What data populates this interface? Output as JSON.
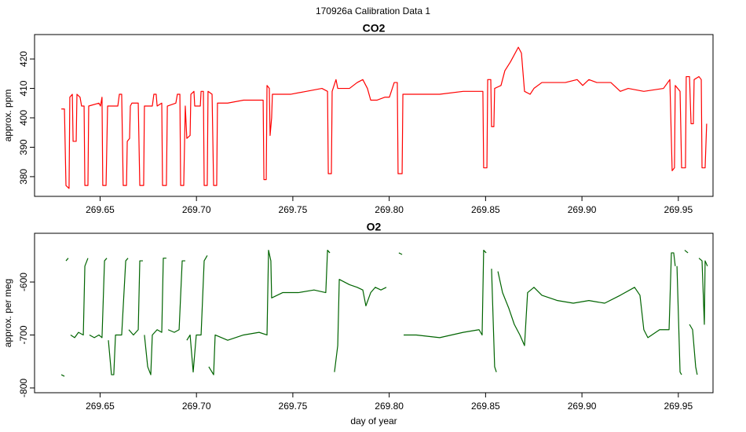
{
  "title": "170926a   Calibration Data 1",
  "chart_data": [
    {
      "type": "line",
      "title": "CO2",
      "y_label": "approx. ppm",
      "color": "#ff0000",
      "xlim": [
        269.616,
        269.968
      ],
      "ylim": [
        373.3,
        428.3
      ],
      "xticks": [
        269.65,
        {
          "value": 269.7,
          "label": "269.70"
        },
        269.75,
        {
          "value": 269.8,
          "label": "269.80"
        },
        269.85,
        {
          "value": 269.9,
          "label": "269.90"
        },
        269.95
      ],
      "yticks": [
        380,
        390,
        400,
        410,
        420
      ],
      "x": [
        269.6299,
        269.6315,
        269.6323,
        269.6339,
        269.6343,
        269.6356,
        269.636,
        269.6376,
        269.638,
        269.6396,
        269.6404,
        269.6417,
        269.6421,
        269.6437,
        269.6441,
        269.6494,
        269.6502,
        269.651,
        269.6514,
        269.6531,
        269.6539,
        269.6592,
        269.66,
        269.6612,
        269.662,
        269.6637,
        269.6641,
        269.6653,
        269.6657,
        269.6665,
        269.6698,
        269.6706,
        269.6726,
        269.673,
        269.6771,
        269.6779,
        269.6791,
        269.6796,
        269.682,
        269.6824,
        269.6844,
        269.6849,
        269.6893,
        269.6901,
        269.6914,
        269.6918,
        269.6934,
        269.6942,
        269.695,
        269.6967,
        269.6971,
        269.6987,
        269.6991,
        269.702,
        269.7024,
        269.7036,
        269.704,
        269.7056,
        269.706,
        269.7081,
        269.7089,
        269.7105,
        269.7109,
        269.7162,
        269.7244,
        269.7346,
        269.735,
        269.7362,
        269.7366,
        269.7378,
        269.7382,
        269.739,
        269.7394,
        269.7488,
        269.757,
        269.7651,
        269.768,
        269.7684,
        269.77,
        269.7704,
        269.7724,
        269.7733,
        269.7794,
        269.7834,
        269.7863,
        269.7887,
        269.7904,
        269.7936,
        269.7977,
        269.8001,
        269.8026,
        269.8042,
        269.8046,
        269.8067,
        269.8071,
        269.814,
        269.8262,
        269.8384,
        269.8486,
        269.849,
        269.8507,
        269.8511,
        269.8527,
        269.8531,
        269.8543,
        269.8547,
        269.858,
        269.86,
        269.8629,
        269.867,
        269.8686,
        269.8702,
        269.8731,
        269.8751,
        269.8792,
        269.8833,
        269.8914,
        269.8975,
        269.9004,
        269.9036,
        269.9077,
        269.915,
        269.9199,
        269.924,
        269.9321,
        269.9423,
        269.9456,
        269.9468,
        269.948,
        269.9484,
        269.9509,
        269.9517,
        269.9537,
        269.9541,
        269.9558,
        269.9566,
        269.9578,
        269.9582,
        269.9607,
        269.9619,
        269.9623,
        269.9639,
        269.9647
      ],
      "values": [
        403,
        403,
        377,
        376,
        407,
        408,
        392,
        392,
        408,
        407,
        404,
        404,
        377,
        377,
        404,
        405,
        404,
        407,
        377,
        377,
        404,
        404,
        408,
        408,
        377,
        377,
        392,
        393,
        404,
        405,
        405,
        377,
        377,
        404,
        404,
        408,
        408,
        404,
        405,
        377,
        377,
        404,
        405,
        408,
        408,
        377,
        377,
        404,
        393,
        394,
        408,
        409,
        404,
        404,
        409,
        409,
        377,
        377,
        409,
        408,
        377,
        377,
        405,
        405,
        406,
        406,
        379,
        379,
        411,
        410,
        394,
        400,
        408,
        408,
        409,
        410,
        409,
        381,
        381,
        409,
        413,
        410,
        410,
        412,
        413,
        410,
        406,
        406,
        407,
        407,
        412,
        412,
        381,
        381,
        408,
        408,
        408,
        409,
        409,
        383,
        383,
        413,
        413,
        397,
        397,
        410,
        411,
        416,
        419,
        424,
        422,
        409,
        408,
        410,
        412,
        412,
        412,
        413,
        411,
        413,
        412,
        412,
        409,
        410,
        409,
        410,
        413,
        382,
        383,
        411,
        409,
        383,
        383,
        414,
        414,
        398,
        398,
        413,
        414,
        413,
        383,
        383,
        398
      ]
    },
    {
      "type": "line",
      "title": "O2",
      "y_label": "approx. per meg",
      "x_label": "day of year",
      "color": "#006400",
      "xlim": [
        269.616,
        269.968
      ],
      "ylim": [
        -809,
        -508
      ],
      "xticks": [
        269.65,
        {
          "value": 269.7,
          "label": "269.70"
        },
        269.75,
        {
          "value": 269.8,
          "label": "269.80"
        },
        269.85,
        {
          "value": 269.9,
          "label": "269.90"
        },
        269.95
      ],
      "yticks": [
        -800,
        -700,
        -600
      ],
      "x": [
        269.6299,
        269.6315,
        null,
        269.6323,
        269.6335,
        null,
        269.6347,
        269.6368,
        269.6388,
        269.6413,
        269.6421,
        269.6437,
        null,
        269.6445,
        269.647,
        269.6494,
        269.651,
        269.6523,
        269.6535,
        null,
        269.6543,
        269.6559,
        269.6571,
        269.658,
        269.6612,
        269.6633,
        269.6645,
        null,
        269.6649,
        269.6673,
        269.6698,
        269.6706,
        269.6722,
        null,
        269.673,
        269.6747,
        269.6763,
        269.6771,
        269.6796,
        269.682,
        269.6828,
        269.6844,
        null,
        269.6853,
        269.6885,
        269.691,
        269.6926,
        269.6942,
        null,
        269.695,
        269.6967,
        269.6983,
        269.6999,
        269.7024,
        269.704,
        269.7056,
        null,
        269.7064,
        269.7089,
        269.7097,
        269.7162,
        269.7244,
        269.7325,
        269.7366,
        269.7374,
        269.7386,
        269.739,
        269.7447,
        269.7529,
        269.761,
        269.7671,
        269.768,
        269.7692,
        null,
        269.7716,
        269.7733,
        269.7741,
        269.7794,
        269.7834,
        269.7863,
        269.7879,
        269.7904,
        269.7928,
        269.7957,
        269.7985,
        null,
        269.805,
        269.8067,
        null,
        269.8075,
        269.814,
        269.8262,
        269.8384,
        269.8466,
        269.8482,
        269.849,
        269.8503,
        null,
        269.8531,
        269.8547,
        269.8556,
        null,
        269.8564,
        269.8588,
        269.8621,
        269.8649,
        269.8678,
        269.8702,
        269.8718,
        269.8751,
        269.8792,
        269.8873,
        269.8955,
        269.9036,
        269.9118,
        269.9199,
        269.9273,
        269.9301,
        269.9321,
        269.9342,
        269.9403,
        269.9452,
        269.9464,
        269.9476,
        269.9484,
        null,
        269.9493,
        269.9509,
        269.9517,
        null,
        269.9533,
        269.955,
        null,
        269.9558,
        269.9574,
        269.959,
        269.9598,
        null,
        269.9607,
        269.9623,
        269.9635,
        269.9639,
        269.9651
      ],
      "values": [
        -775,
        -778,
        null,
        -560,
        -555,
        null,
        -700,
        -705,
        -695,
        -700,
        -570,
        -555,
        null,
        -700,
        -705,
        -700,
        -705,
        -560,
        -555,
        null,
        -710,
        -775,
        -775,
        -700,
        -700,
        -560,
        -555,
        null,
        -690,
        -700,
        -690,
        -560,
        -560,
        null,
        -700,
        -760,
        -775,
        -700,
        -690,
        -695,
        -555,
        -555,
        null,
        -690,
        -695,
        -690,
        -560,
        -560,
        null,
        -710,
        -700,
        -770,
        -700,
        -700,
        -560,
        -550,
        null,
        -760,
        -775,
        -700,
        -710,
        -700,
        -695,
        -700,
        -540,
        -560,
        -630,
        -620,
        -620,
        -615,
        -620,
        -540,
        -545,
        null,
        -770,
        -720,
        -595,
        -605,
        -610,
        -615,
        -645,
        -620,
        -610,
        -615,
        -610,
        null,
        -545,
        -548,
        null,
        -700,
        -700,
        -705,
        -695,
        -690,
        -700,
        -540,
        -545,
        null,
        -575,
        -760,
        -770,
        null,
        -580,
        -620,
        -650,
        -680,
        -700,
        -720,
        -620,
        -610,
        -625,
        -635,
        -640,
        -635,
        -640,
        -625,
        -610,
        -625,
        -690,
        -705,
        -690,
        -690,
        -545,
        -545,
        -570,
        null,
        -570,
        -770,
        -775,
        null,
        -540,
        -545,
        null,
        -680,
        -690,
        -760,
        -775,
        null,
        -555,
        -560,
        -680,
        -560,
        -570
      ]
    }
  ]
}
